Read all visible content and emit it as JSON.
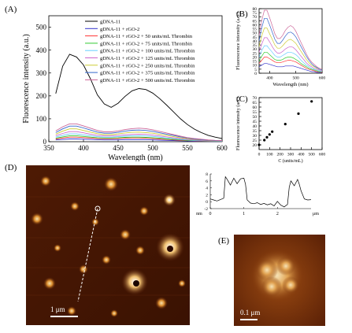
{
  "panels": {
    "a": "(A)",
    "b": "(B)",
    "c": "(C)",
    "d": "(D)",
    "e": "(E)"
  },
  "chart_data": [
    {
      "id": "A",
      "type": "line",
      "xlabel": "Wavelength (nm)",
      "ylabel": "Fluorescence intensity (a.u.)",
      "xlim": [
        350,
        600
      ],
      "ylim": [
        0,
        550
      ],
      "xticks": [
        350,
        400,
        450,
        500,
        550,
        600
      ],
      "yticks": [
        0,
        100,
        200,
        300,
        400,
        500
      ],
      "legend_position": "top-right",
      "x": [
        360,
        370,
        380,
        390,
        400,
        410,
        420,
        430,
        440,
        450,
        460,
        470,
        480,
        490,
        500,
        510,
        520,
        530,
        540,
        550,
        560,
        570,
        580,
        590,
        600
      ],
      "series": [
        {
          "name": "gDNA-11",
          "color": "#000000",
          "values": [
            210,
            330,
            382,
            370,
            335,
            275,
            205,
            165,
            150,
            168,
            198,
            222,
            232,
            228,
            212,
            188,
            160,
            130,
            100,
            75,
            55,
            40,
            28,
            20,
            14
          ]
        },
        {
          "name": "gDNA-11 + rGO-2",
          "color": "#3333cc",
          "values": [
            8,
            10,
            12,
            12,
            11,
            10,
            9,
            8,
            8,
            8,
            9,
            9,
            9,
            9,
            8,
            7,
            6,
            5,
            4,
            3,
            2,
            2,
            1,
            1,
            1
          ]
        },
        {
          "name": "gDNA-11 + rGO-2 + 50 units/mL Thrombin",
          "color": "#ff3333",
          "values": [
            12,
            16,
            20,
            20,
            18,
            16,
            14,
            13,
            13,
            14,
            15,
            16,
            16,
            15,
            14,
            12,
            10,
            8,
            6,
            5,
            4,
            3,
            2,
            2,
            1
          ]
        },
        {
          "name": "gDNA-11 + rGO-2 + 75 units/mL Thrombin",
          "color": "#33cc33",
          "values": [
            15,
            21,
            26,
            26,
            23,
            20,
            17,
            16,
            16,
            17,
            19,
            20,
            20,
            19,
            17,
            15,
            12,
            10,
            8,
            6,
            5,
            4,
            3,
            2,
            2
          ]
        },
        {
          "name": "gDNA-11 + rGO-2 + 100 units/mL Thrombin",
          "color": "#66ccff",
          "values": [
            20,
            28,
            34,
            34,
            30,
            26,
            22,
            20,
            20,
            22,
            24,
            26,
            26,
            25,
            23,
            20,
            16,
            13,
            10,
            8,
            6,
            5,
            4,
            3,
            2
          ]
        },
        {
          "name": "gDNA-11 + rGO-2 + 125 units/mL Thrombin",
          "color": "#cc66cc",
          "values": [
            26,
            36,
            44,
            44,
            39,
            33,
            28,
            25,
            25,
            27,
            30,
            32,
            33,
            32,
            29,
            25,
            21,
            17,
            13,
            10,
            8,
            6,
            5,
            4,
            3
          ]
        },
        {
          "name": "gDNA-11 + rGO-2 + 250 units/mL Thrombin",
          "color": "#cccc33",
          "values": [
            33,
            46,
            56,
            56,
            49,
            42,
            35,
            31,
            31,
            34,
            38,
            41,
            42,
            40,
            37,
            32,
            27,
            22,
            17,
            13,
            10,
            8,
            6,
            5,
            4
          ]
        },
        {
          "name": "gDNA-11 + rGO-2 + 375 units/mL Thrombin",
          "color": "#3366cc",
          "values": [
            40,
            56,
            68,
            68,
            60,
            51,
            42,
            37,
            37,
            41,
            46,
            50,
            51,
            49,
            45,
            39,
            33,
            27,
            21,
            16,
            12,
            9,
            7,
            5,
            4
          ]
        },
        {
          "name": "gDNA-11 + rGO-2 + 500 units/mL Thrombin",
          "color": "#cc6699",
          "values": [
            47,
            65,
            78,
            78,
            69,
            59,
            49,
            43,
            43,
            47,
            53,
            57,
            59,
            57,
            52,
            45,
            38,
            31,
            24,
            18,
            14,
            11,
            8,
            6,
            5
          ]
        }
      ]
    },
    {
      "id": "B",
      "type": "line",
      "xlabel": "Wavelength (nm)",
      "ylabel": "Fluorescence intensity (a.u.)",
      "xlim": [
        360,
        600
      ],
      "ylim": [
        0,
        80
      ],
      "xticks": [
        400,
        500,
        600
      ],
      "yticks": [
        0,
        5,
        10,
        15,
        20,
        25,
        30,
        35,
        40,
        45,
        50,
        55,
        60,
        65,
        70,
        75,
        80
      ],
      "x": [
        360,
        370,
        380,
        390,
        400,
        410,
        420,
        430,
        440,
        450,
        460,
        470,
        480,
        490,
        500,
        510,
        520,
        530,
        540,
        550,
        560,
        570,
        580,
        590,
        600
      ],
      "series": [
        {
          "name": "gDNA-11 + rGO-2",
          "color": "#3333cc",
          "values": [
            8,
            10,
            12,
            12,
            11,
            10,
            9,
            8,
            8,
            8,
            9,
            9,
            9,
            9,
            8,
            7,
            6,
            5,
            4,
            3,
            2,
            2,
            1,
            1,
            1
          ]
        },
        {
          "name": "50 units/mL",
          "color": "#ff3333",
          "values": [
            12,
            16,
            20,
            20,
            18,
            16,
            14,
            13,
            13,
            14,
            15,
            16,
            16,
            15,
            14,
            12,
            10,
            8,
            6,
            5,
            4,
            3,
            2,
            2,
            1
          ]
        },
        {
          "name": "75 units/mL",
          "color": "#33cc33",
          "values": [
            15,
            21,
            26,
            26,
            23,
            20,
            17,
            16,
            16,
            17,
            19,
            20,
            20,
            19,
            17,
            15,
            12,
            10,
            8,
            6,
            5,
            4,
            3,
            2,
            2
          ]
        },
        {
          "name": "100 units/mL",
          "color": "#66ccff",
          "values": [
            20,
            28,
            34,
            34,
            30,
            26,
            22,
            20,
            20,
            22,
            24,
            26,
            26,
            25,
            23,
            20,
            16,
            13,
            10,
            8,
            6,
            5,
            4,
            3,
            2
          ]
        },
        {
          "name": "125 units/mL",
          "color": "#cc66cc",
          "values": [
            26,
            36,
            44,
            44,
            39,
            33,
            28,
            25,
            25,
            27,
            30,
            32,
            33,
            32,
            29,
            25,
            21,
            17,
            13,
            10,
            8,
            6,
            5,
            4,
            3
          ]
        },
        {
          "name": "250 units/mL",
          "color": "#cccc33",
          "values": [
            33,
            46,
            56,
            56,
            49,
            42,
            35,
            31,
            31,
            34,
            38,
            41,
            42,
            40,
            37,
            32,
            27,
            22,
            17,
            13,
            10,
            8,
            6,
            5,
            4
          ]
        },
        {
          "name": "375 units/mL",
          "color": "#3366cc",
          "values": [
            40,
            56,
            68,
            68,
            60,
            51,
            42,
            37,
            37,
            41,
            46,
            50,
            51,
            49,
            45,
            39,
            33,
            27,
            21,
            16,
            12,
            9,
            7,
            5,
            4
          ]
        },
        {
          "name": "500 units/mL",
          "color": "#cc6699",
          "values": [
            47,
            65,
            78,
            78,
            69,
            59,
            49,
            43,
            43,
            47,
            53,
            57,
            59,
            57,
            52,
            45,
            38,
            31,
            24,
            18,
            14,
            11,
            8,
            6,
            5
          ]
        }
      ]
    },
    {
      "id": "C",
      "type": "scatter",
      "xlabel": "C (units/mL)",
      "ylabel": "Fluorescence intensity (a.u.)",
      "xlim": [
        0,
        600
      ],
      "ylim": [
        15,
        70
      ],
      "xticks": [
        0,
        100,
        200,
        300,
        400,
        500,
        600
      ],
      "yticks": [
        20,
        25,
        30,
        35,
        40,
        45,
        50,
        55,
        60,
        65,
        70
      ],
      "x": [
        0,
        50,
        75,
        100,
        125,
        250,
        375,
        500
      ],
      "y": [
        20,
        25,
        28,
        31,
        34,
        42,
        53,
        66
      ]
    },
    {
      "id": "D-profile",
      "type": "line",
      "xlabel": "μm",
      "ylabel": "nm",
      "xlim": [
        0,
        3
      ],
      "ylim": [
        -2,
        8
      ],
      "xticks": [
        0,
        1,
        2
      ],
      "yticks": [
        -2,
        0,
        2,
        4,
        6,
        8
      ],
      "x": [
        0,
        0.1,
        0.2,
        0.3,
        0.4,
        0.45,
        0.5,
        0.6,
        0.7,
        0.8,
        0.9,
        1.0,
        1.05,
        1.1,
        1.2,
        1.3,
        1.4,
        1.5,
        1.6,
        1.7,
        1.8,
        1.9,
        2.0,
        2.1,
        2.2,
        2.3,
        2.35,
        2.4,
        2.5,
        2.6,
        2.65,
        2.7,
        2.8,
        2.9,
        3.0
      ],
      "y": [
        0.8,
        0.5,
        0.2,
        0.6,
        1.0,
        7.2,
        6.5,
        4.8,
        6.8,
        5.2,
        6.6,
        6.8,
        5.0,
        0.5,
        -0.4,
        -0.6,
        -0.3,
        -0.8,
        -0.5,
        -0.9,
        -0.6,
        -1.2,
        0.1,
        -1.0,
        -1.5,
        -0.8,
        4.2,
        6.0,
        4.6,
        6.4,
        5.0,
        3.2,
        0.8,
        0.5,
        0.6
      ]
    }
  ],
  "afm": {
    "d_scale": "1 μm",
    "e_scale": "0.1 μm"
  }
}
